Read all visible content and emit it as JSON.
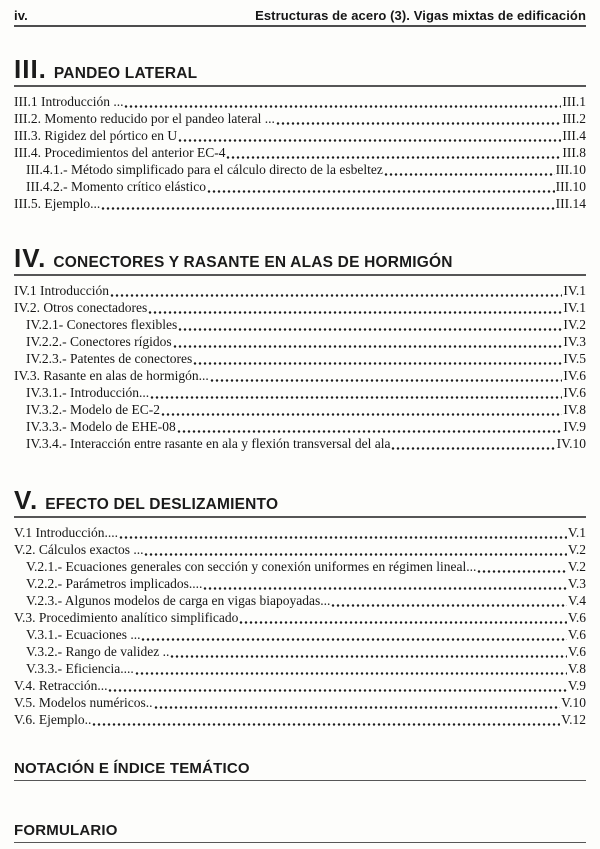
{
  "header": {
    "page_number": "iv.",
    "running_title": "Estructuras de acero (3). Vigas mixtas de edificación"
  },
  "sections": [
    {
      "numeral": "III.",
      "title": "PANDEO LATERAL",
      "entries": [
        {
          "label": "III.1 Introducción ...",
          "page": "III.1",
          "indent": false
        },
        {
          "label": "III.2. Momento reducido por el pandeo lateral ...",
          "page": "III.2",
          "indent": false
        },
        {
          "label": "III.3. Rigidez del pórtico en U",
          "page": "III.4",
          "indent": false
        },
        {
          "label": "III.4. Procedimientos del anterior EC-4",
          "page": "III.8",
          "indent": false
        },
        {
          "label": "III.4.1.- Método simplificado para el cálculo directo de la esbeltez",
          "page": "III.10",
          "indent": true
        },
        {
          "label": "III.4.2.- Momento crítico elástico",
          "page": "III.10",
          "indent": true
        },
        {
          "label": "III.5. Ejemplo...",
          "page": "III.14",
          "indent": false
        }
      ]
    },
    {
      "numeral": "IV.",
      "title": "CONECTORES Y RASANTE EN ALAS DE HORMIGÓN",
      "entries": [
        {
          "label": "IV.1 Introducción",
          "page": "IV.1",
          "indent": false
        },
        {
          "label": "IV.2. Otros conectadores",
          "page": "IV.1",
          "indent": false
        },
        {
          "label": "IV.2.1- Conectores flexibles",
          "page": "IV.2",
          "indent": true
        },
        {
          "label": "IV.2.2.- Conectores rígidos",
          "page": "IV.3",
          "indent": true
        },
        {
          "label": "IV.2.3.- Patentes de conectores",
          "page": "IV.5",
          "indent": true
        },
        {
          "label": "IV.3. Rasante en alas de hormigón...",
          "page": "IV.6",
          "indent": false
        },
        {
          "label": "IV.3.1.- Introducción...",
          "page": "IV.6",
          "indent": true
        },
        {
          "label": "IV.3.2.- Modelo de EC-2",
          "page": "IV.8",
          "indent": true
        },
        {
          "label": "IV.3.3.- Modelo de EHE-08",
          "page": "IV.9",
          "indent": true
        },
        {
          "label": "IV.3.4.- Interacción entre rasante en ala y flexión transversal del ala",
          "page": "IV.10",
          "indent": true
        }
      ]
    },
    {
      "numeral": "V.",
      "title": "EFECTO DEL DESLIZAMIENTO",
      "entries": [
        {
          "label": "V.1 Introducción....",
          "page": "V.1",
          "indent": false
        },
        {
          "label": "V.2. Cálculos exactos ...",
          "page": "V.2",
          "indent": false
        },
        {
          "label": "V.2.1.- Ecuaciones generales con sección y conexión uniformes en régimen lineal...",
          "page": "V.2",
          "indent": true
        },
        {
          "label": "V.2.2.- Parámetros implicados....",
          "page": "V.3",
          "indent": true
        },
        {
          "label": "V.2.3.- Algunos modelos de carga en vigas biapoyadas...",
          "page": "V.4",
          "indent": true
        },
        {
          "label": "V.3. Procedimiento analítico simplificado",
          "page": "V.6",
          "indent": false
        },
        {
          "label": "V.3.1.- Ecuaciones ...",
          "page": "V.6",
          "indent": true
        },
        {
          "label": "V.3.2.- Rango de validez ..",
          "page": "V.6",
          "indent": true
        },
        {
          "label": "V.3.3.- Eficiencia....",
          "page": "V.8",
          "indent": true
        },
        {
          "label": "V.4. Retracción...",
          "page": "V.9",
          "indent": false
        },
        {
          "label": "V.5. Modelos numéricos..",
          "page": "V.10",
          "indent": false
        },
        {
          "label": "V.6. Ejemplo..",
          "page": "V.12",
          "indent": false
        }
      ]
    }
  ],
  "footer_headings": [
    {
      "title": "NOTACIÓN E ÍNDICE TEMÁTICO"
    },
    {
      "title": "FORMULARIO"
    }
  ]
}
